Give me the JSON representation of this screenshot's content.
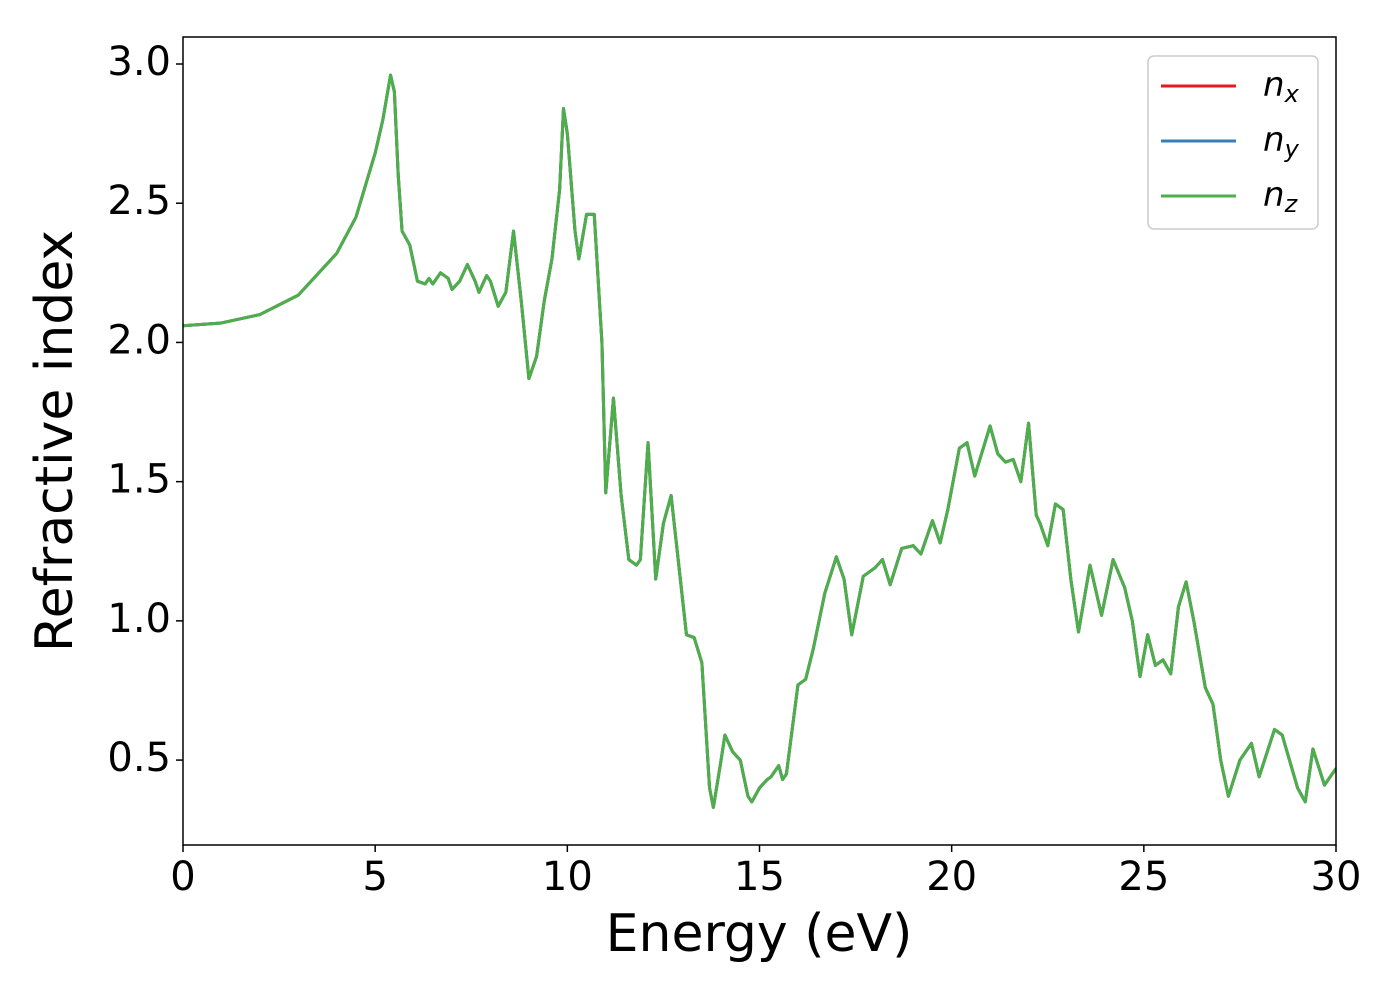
{
  "chart_data": {
    "type": "line",
    "xlabel": "Energy (eV)",
    "ylabel": "Refractive index",
    "x": [
      0,
      1,
      2,
      3,
      4,
      4.5,
      5,
      5.2,
      5.4,
      5.5,
      5.6,
      5.7,
      5.9,
      6.1,
      6.3,
      6.4,
      6.5,
      6.7,
      6.9,
      7.0,
      7.2,
      7.4,
      7.6,
      7.7,
      7.9,
      8.0,
      8.2,
      8.4,
      8.6,
      8.8,
      9.0,
      9.2,
      9.4,
      9.6,
      9.8,
      9.9,
      10.0,
      10.2,
      10.3,
      10.5,
      10.7,
      10.9,
      11.0,
      11.2,
      11.4,
      11.6,
      11.8,
      11.9,
      12.1,
      12.3,
      12.5,
      12.7,
      12.9,
      13.1,
      13.3,
      13.5,
      13.7,
      13.8,
      14.0,
      14.1,
      14.3,
      14.5,
      14.7,
      14.8,
      15.0,
      15.2,
      15.3,
      15.5,
      15.6,
      15.7,
      16.0,
      16.2,
      16.4,
      16.7,
      17.0,
      17.2,
      17.4,
      17.7,
      18.0,
      18.2,
      18.4,
      18.7,
      19.0,
      19.2,
      19.5,
      19.7,
      19.9,
      20.2,
      20.4,
      20.6,
      21.0,
      21.2,
      21.4,
      21.6,
      21.8,
      22.0,
      22.2,
      22.3,
      22.5,
      22.7,
      22.9,
      23.1,
      23.3,
      23.6,
      23.9,
      24.2,
      24.5,
      24.7,
      24.9,
      25.1,
      25.3,
      25.5,
      25.7,
      25.9,
      26.1,
      26.3,
      26.6,
      26.8,
      27.0,
      27.2,
      27.5,
      27.8,
      28.0,
      28.4,
      28.6,
      29.0,
      29.2,
      29.4,
      29.7,
      30.0
    ],
    "series": [
      {
        "name": "nx",
        "color": "#e41a1c",
        "values": [
          2.06,
          2.07,
          2.1,
          2.17,
          2.32,
          2.45,
          2.68,
          2.8,
          2.96,
          2.9,
          2.6,
          2.4,
          2.35,
          2.22,
          2.21,
          2.23,
          2.21,
          2.25,
          2.23,
          2.19,
          2.22,
          2.28,
          2.22,
          2.18,
          2.24,
          2.22,
          2.13,
          2.18,
          2.4,
          2.15,
          1.87,
          1.95,
          2.15,
          2.3,
          2.55,
          2.84,
          2.75,
          2.4,
          2.3,
          2.46,
          2.46,
          2.0,
          1.46,
          1.8,
          1.45,
          1.22,
          1.2,
          1.22,
          1.64,
          1.15,
          1.35,
          1.45,
          1.2,
          0.95,
          0.94,
          0.85,
          0.4,
          0.33,
          0.5,
          0.59,
          0.53,
          0.5,
          0.37,
          0.35,
          0.4,
          0.43,
          0.44,
          0.48,
          0.43,
          0.45,
          0.77,
          0.79,
          0.9,
          1.1,
          1.23,
          1.15,
          0.95,
          1.16,
          1.19,
          1.22,
          1.13,
          1.26,
          1.27,
          1.24,
          1.36,
          1.28,
          1.4,
          1.62,
          1.64,
          1.52,
          1.7,
          1.6,
          1.57,
          1.58,
          1.5,
          1.71,
          1.38,
          1.35,
          1.27,
          1.42,
          1.4,
          1.15,
          0.96,
          1.2,
          1.02,
          1.22,
          1.12,
          1.0,
          0.8,
          0.95,
          0.84,
          0.86,
          0.81,
          1.05,
          1.14,
          1.0,
          0.76,
          0.7,
          0.5,
          0.37,
          0.5,
          0.56,
          0.44,
          0.61,
          0.59,
          0.4,
          0.35,
          0.54,
          0.41,
          0.47
        ]
      },
      {
        "name": "ny",
        "color": "#377eb8",
        "values": [
          2.06,
          2.07,
          2.1,
          2.17,
          2.32,
          2.45,
          2.68,
          2.8,
          2.96,
          2.9,
          2.6,
          2.4,
          2.35,
          2.22,
          2.21,
          2.23,
          2.21,
          2.25,
          2.23,
          2.19,
          2.22,
          2.28,
          2.22,
          2.18,
          2.24,
          2.22,
          2.13,
          2.18,
          2.4,
          2.15,
          1.87,
          1.95,
          2.15,
          2.3,
          2.55,
          2.84,
          2.75,
          2.4,
          2.3,
          2.46,
          2.46,
          2.0,
          1.46,
          1.8,
          1.45,
          1.22,
          1.2,
          1.22,
          1.64,
          1.15,
          1.35,
          1.45,
          1.2,
          0.95,
          0.94,
          0.85,
          0.4,
          0.33,
          0.5,
          0.59,
          0.53,
          0.5,
          0.37,
          0.35,
          0.4,
          0.43,
          0.44,
          0.48,
          0.43,
          0.45,
          0.77,
          0.79,
          0.9,
          1.1,
          1.23,
          1.15,
          0.95,
          1.16,
          1.19,
          1.22,
          1.13,
          1.26,
          1.27,
          1.24,
          1.36,
          1.28,
          1.4,
          1.62,
          1.64,
          1.52,
          1.7,
          1.6,
          1.57,
          1.58,
          1.5,
          1.71,
          1.38,
          1.35,
          1.27,
          1.42,
          1.4,
          1.15,
          0.96,
          1.2,
          1.02,
          1.22,
          1.12,
          1.0,
          0.8,
          0.95,
          0.84,
          0.86,
          0.81,
          1.05,
          1.14,
          1.0,
          0.76,
          0.7,
          0.5,
          0.37,
          0.5,
          0.56,
          0.44,
          0.61,
          0.59,
          0.4,
          0.35,
          0.54,
          0.41,
          0.47
        ]
      },
      {
        "name": "nz",
        "color": "#4daf4a",
        "values": [
          2.06,
          2.07,
          2.1,
          2.17,
          2.32,
          2.45,
          2.68,
          2.8,
          2.96,
          2.9,
          2.6,
          2.4,
          2.35,
          2.22,
          2.21,
          2.23,
          2.21,
          2.25,
          2.23,
          2.19,
          2.22,
          2.28,
          2.22,
          2.18,
          2.24,
          2.22,
          2.13,
          2.18,
          2.4,
          2.15,
          1.87,
          1.95,
          2.15,
          2.3,
          2.55,
          2.84,
          2.75,
          2.4,
          2.3,
          2.46,
          2.46,
          2.0,
          1.46,
          1.8,
          1.45,
          1.22,
          1.2,
          1.22,
          1.64,
          1.15,
          1.35,
          1.45,
          1.2,
          0.95,
          0.94,
          0.85,
          0.4,
          0.33,
          0.5,
          0.59,
          0.53,
          0.5,
          0.37,
          0.35,
          0.4,
          0.43,
          0.44,
          0.48,
          0.43,
          0.45,
          0.77,
          0.79,
          0.9,
          1.1,
          1.23,
          1.15,
          0.95,
          1.16,
          1.19,
          1.22,
          1.13,
          1.26,
          1.27,
          1.24,
          1.36,
          1.28,
          1.4,
          1.62,
          1.64,
          1.52,
          1.7,
          1.6,
          1.57,
          1.58,
          1.5,
          1.71,
          1.38,
          1.35,
          1.27,
          1.42,
          1.4,
          1.15,
          0.96,
          1.2,
          1.02,
          1.22,
          1.12,
          1.0,
          0.8,
          0.95,
          0.84,
          0.86,
          0.81,
          1.05,
          1.14,
          1.0,
          0.76,
          0.7,
          0.5,
          0.37,
          0.5,
          0.56,
          0.44,
          0.61,
          0.59,
          0.4,
          0.35,
          0.54,
          0.41,
          0.47
        ]
      }
    ],
    "xlim": [
      0,
      30
    ],
    "xticks": [
      0,
      5,
      10,
      15,
      20,
      25,
      30
    ],
    "ylim": [
      0.195,
      3.097
    ],
    "yticks": [
      {
        "value": 0.5,
        "label": "0.5"
      },
      {
        "value": 1,
        "label": "1.0"
      },
      {
        "value": 1.5,
        "label": "1.5"
      },
      {
        "value": 2,
        "label": "2.0"
      },
      {
        "value": 2.5,
        "label": "2.5"
      },
      {
        "value": 3,
        "label": "3.0"
      }
    ],
    "legend": "upper right",
    "grid": false
  }
}
